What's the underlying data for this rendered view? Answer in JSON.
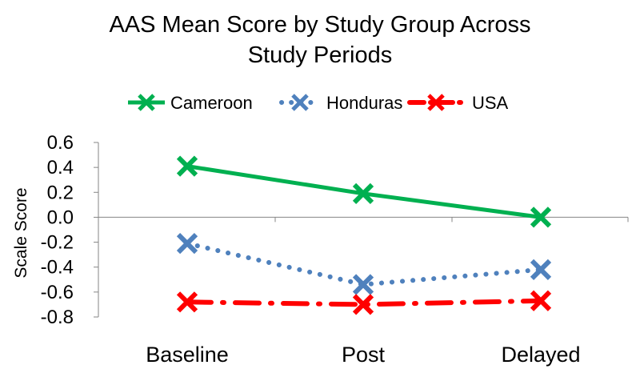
{
  "chart_data": {
    "type": "line",
    "title": "AAS Mean Score by Study Group Across\nStudy Periods",
    "xlabel": "",
    "ylabel": "Scale Score",
    "categories": [
      "Baseline",
      "Post",
      "Delayed"
    ],
    "ylim": [
      -0.8,
      0.6
    ],
    "yticks": [
      0.6,
      0.4,
      0.2,
      0.0,
      -0.2,
      -0.4,
      -0.6,
      -0.8
    ],
    "ytick_labels": [
      "0.6",
      "0.4",
      "0.2",
      "0.0",
      "-0.2",
      "-0.4",
      "-0.6",
      "-0.8"
    ],
    "grid": false,
    "legend_position": "top",
    "series": [
      {
        "name": "Cameroon",
        "values": [
          0.41,
          0.19,
          0.0
        ],
        "color": "#00B050",
        "line_style": "solid",
        "marker": "x"
      },
      {
        "name": "Honduras",
        "values": [
          -0.21,
          -0.54,
          -0.42
        ],
        "color": "#4F81BD",
        "line_style": "dotted",
        "marker": "x"
      },
      {
        "name": "USA",
        "values": [
          -0.68,
          -0.7,
          -0.67
        ],
        "color": "#FF0000",
        "line_style": "dash-dot",
        "marker": "x"
      }
    ]
  }
}
